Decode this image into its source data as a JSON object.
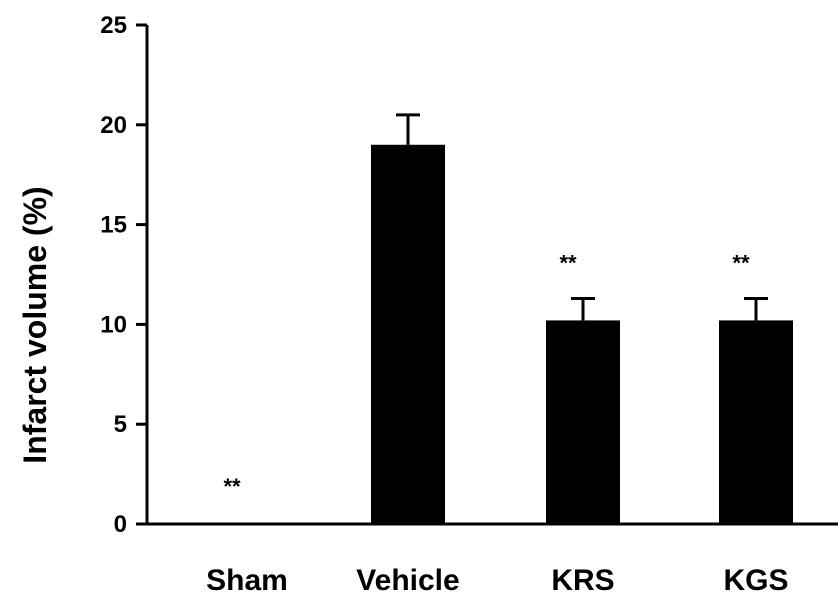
{
  "chart_data": {
    "type": "bar",
    "title": "",
    "xlabel": "",
    "ylabel": "Infarct volume (%)",
    "ylim": [
      0,
      25
    ],
    "yticks": [
      0,
      5,
      10,
      15,
      20,
      25
    ],
    "categories": [
      "Sham",
      "Vehicle",
      "KRS",
      "KGS"
    ],
    "values": [
      0,
      19.0,
      10.2,
      10.2
    ],
    "errors": [
      0,
      1.5,
      1.1,
      1.1
    ],
    "annotations": [
      "**",
      "",
      "**",
      "**"
    ],
    "bar_color": "#000000",
    "grid": false,
    "legend": "none"
  }
}
